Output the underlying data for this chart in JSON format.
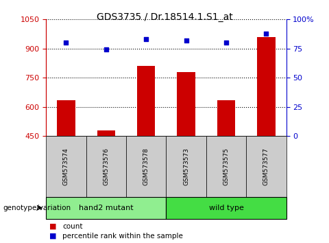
{
  "title": "GDS3735 / Dr.18514.1.S1_at",
  "samples": [
    "GSM573574",
    "GSM573576",
    "GSM573578",
    "GSM573573",
    "GSM573575",
    "GSM573577"
  ],
  "counts": [
    635,
    480,
    810,
    780,
    635,
    960
  ],
  "percentile_ranks": [
    80,
    74,
    83,
    82,
    80,
    88
  ],
  "ylim_left": [
    450,
    1050
  ],
  "ylim_right": [
    0,
    100
  ],
  "yticks_left": [
    450,
    600,
    750,
    900,
    1050
  ],
  "yticks_right": [
    0,
    25,
    50,
    75,
    100
  ],
  "ytick_labels_right": [
    "0",
    "25",
    "50",
    "75",
    "100%"
  ],
  "bar_color": "#cc0000",
  "square_color": "#0000cc",
  "bar_bottom": 450,
  "group_labels": [
    "hand2 mutant",
    "wild type"
  ],
  "group_sizes": [
    3,
    3
  ],
  "group_colors": [
    "#90ee90",
    "#44dd44"
  ],
  "grid_color": "black",
  "left_axis_color": "#cc0000",
  "right_axis_color": "#0000cc",
  "label_count": "count",
  "label_percentile": "percentile rank within the sample",
  "genotype_label": "genotype/variation",
  "tick_cell_bg": "#cccccc",
  "figsize": [
    4.8,
    3.54
  ],
  "dpi": 100
}
